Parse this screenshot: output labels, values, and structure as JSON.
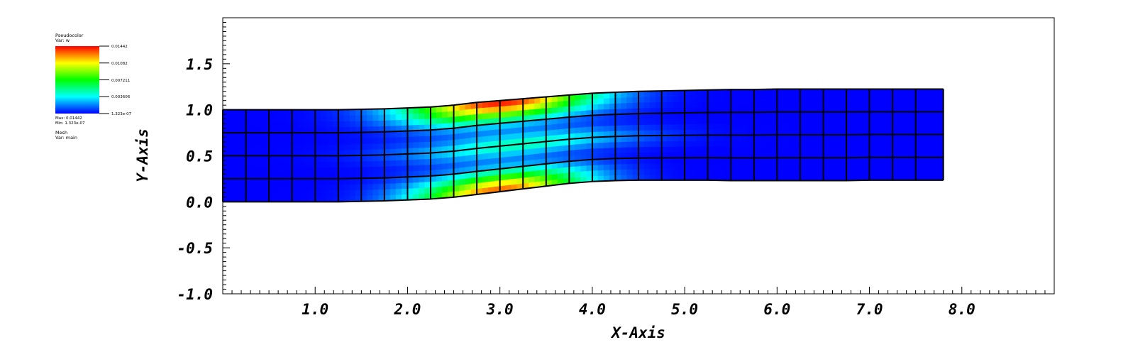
{
  "legend": {
    "plot_type": "Pseudocolor",
    "var_label": "Var: w",
    "max_label": "Max: 0.01442",
    "min_label": "Min: 1.323e-07",
    "ticks": [
      "0.01442",
      "0.01082",
      "0.007211",
      "0.003606",
      "1.323e-07"
    ],
    "mesh_type": "Mesh",
    "mesh_var": "Var: main"
  },
  "chart_data": {
    "type": "heatmap",
    "title": "",
    "xlabel": "X-Axis",
    "ylabel": "Y-Axis",
    "xlim": [
      0.0,
      9.0
    ],
    "ylim": [
      -1.0,
      2.0
    ],
    "xticks": [
      "1.0",
      "2.0",
      "3.0",
      "4.0",
      "5.0",
      "6.0",
      "7.0",
      "8.0"
    ],
    "yticks": [
      "-1.0",
      "-0.5",
      "0.0",
      "0.5",
      "1.0",
      "1.5"
    ],
    "colormap": [
      "#0000ff",
      "#00ffff",
      "#00ff00",
      "#ffff00",
      "#ff0000"
    ],
    "value_range": [
      1.323e-07,
      0.01442
    ],
    "mesh": {
      "columns_x": [
        0.0,
        0.25,
        0.5,
        0.75,
        1.0,
        1.25,
        1.5,
        1.75,
        2.0,
        2.25,
        2.5,
        2.75,
        3.0,
        3.25,
        3.5,
        3.75,
        4.0,
        4.25,
        4.5,
        4.75,
        5.0,
        5.25,
        5.5,
        5.75,
        6.0,
        6.25,
        6.5,
        6.75,
        7.0,
        7.25,
        7.5,
        7.8
      ],
      "bottom_y": [
        0.0,
        0.0,
        0.0,
        0.0,
        0.0,
        0.0,
        0.005,
        0.01,
        0.02,
        0.03,
        0.05,
        0.08,
        0.11,
        0.14,
        0.17,
        0.2,
        0.22,
        0.23,
        0.235,
        0.235,
        0.235,
        0.235,
        0.23,
        0.23,
        0.23,
        0.23,
        0.23,
        0.23,
        0.235,
        0.235,
        0.235,
        0.235
      ],
      "top_y": [
        1.0,
        1.0,
        1.0,
        1.0,
        1.0,
        1.0,
        1.005,
        1.01,
        1.02,
        1.03,
        1.05,
        1.08,
        1.1,
        1.12,
        1.14,
        1.16,
        1.18,
        1.19,
        1.2,
        1.205,
        1.21,
        1.215,
        1.22,
        1.22,
        1.225,
        1.225,
        1.225,
        1.225,
        1.225,
        1.225,
        1.225,
        1.225
      ],
      "bottom_peak": {
        "x": 3.0,
        "value": 0.013,
        "width": 0.9
      },
      "top_peak": {
        "x": 3.0,
        "value": 0.0142,
        "width": 1.0
      },
      "mid_band": {
        "x": 3.2,
        "value": 0.0075,
        "width": 1.2
      }
    }
  }
}
